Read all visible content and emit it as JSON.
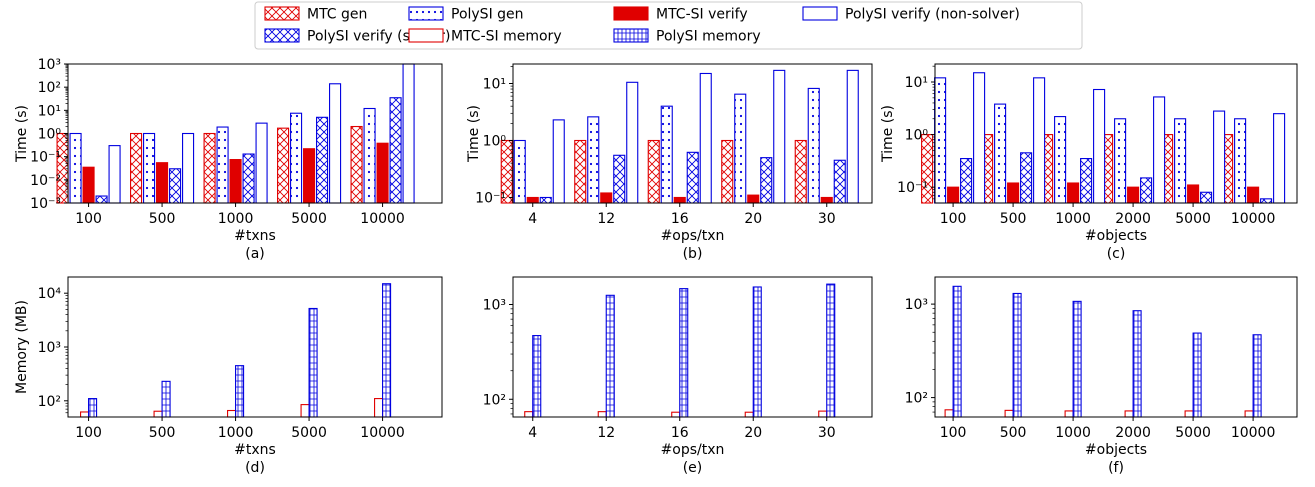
{
  "legend": {
    "items": [
      {
        "label": "MTC gen",
        "color": "#e00000",
        "style": "crosshatch"
      },
      {
        "label": "PolySI gen",
        "color": "#0000e0",
        "style": "dots"
      },
      {
        "label": "MTC-SI verify",
        "color": "#e00000",
        "style": "solid"
      },
      {
        "label": "PolySI verify (non-solver)",
        "color": "#0000e0",
        "style": "plain"
      },
      {
        "label": "PolySI verify (solver)",
        "color": "#0000e0",
        "style": "crosshatch"
      },
      {
        "label": "MTC-SI memory",
        "color": "#e00000",
        "style": "plain"
      },
      {
        "label": "PolySI memory",
        "color": "#0000e0",
        "style": "grid"
      }
    ]
  },
  "chart_data": [
    {
      "type": "bar",
      "panel": "(a)",
      "xlabel": "#txns",
      "ylabel": "Time (s)",
      "yscale": "log",
      "ylim": [
        0.001,
        1000
      ],
      "categories": [
        "100",
        "500",
        "1000",
        "5000",
        "10000"
      ],
      "series": [
        {
          "name": "MTC gen",
          "values": [
            1.0,
            1.0,
            1.0,
            1.7,
            2.0
          ]
        },
        {
          "name": "PolySI gen",
          "values": [
            1.0,
            1.0,
            1.9,
            7.5,
            12
          ]
        },
        {
          "name": "MTC-SI verify",
          "values": [
            0.035,
            0.055,
            0.075,
            0.22,
            0.38
          ]
        },
        {
          "name": "PolySI verify (solver)",
          "values": [
            0.002,
            0.03,
            0.13,
            5.0,
            35
          ]
        },
        {
          "name": "PolySI verify (non-solver)",
          "values": [
            0.3,
            1.0,
            2.8,
            140,
            1100
          ]
        }
      ]
    },
    {
      "type": "bar",
      "panel": "(b)",
      "xlabel": "#ops/txn",
      "ylabel": "Time (s)",
      "yscale": "log",
      "ylim": [
        0.08,
        22
      ],
      "categories": [
        "4",
        "12",
        "16",
        "20",
        "30"
      ],
      "series": [
        {
          "name": "MTC gen",
          "values": [
            1.0,
            1.0,
            1.0,
            1.0,
            1.0
          ]
        },
        {
          "name": "PolySI gen",
          "values": [
            1.0,
            2.6,
            4.0,
            6.5,
            8.2
          ]
        },
        {
          "name": "MTC-SI verify",
          "values": [
            0.1,
            0.12,
            0.1,
            0.11,
            0.1
          ]
        },
        {
          "name": "PolySI verify (solver)",
          "values": [
            0.1,
            0.55,
            0.62,
            0.5,
            0.45
          ]
        },
        {
          "name": "PolySI verify (non-solver)",
          "values": [
            2.3,
            10.5,
            15,
            17,
            17
          ]
        }
      ]
    },
    {
      "type": "bar",
      "panel": "(c)",
      "xlabel": "#objects",
      "ylabel": "Time (s)",
      "yscale": "log",
      "ylim": [
        0.05,
        22
      ],
      "categories": [
        "100",
        "500",
        "1000",
        "2000",
        "5000",
        "10000"
      ],
      "series": [
        {
          "name": "MTC gen",
          "values": [
            1.0,
            1.0,
            1.0,
            1.0,
            1.0,
            1.0
          ]
        },
        {
          "name": "PolySI gen",
          "values": [
            12,
            3.8,
            2.2,
            2.0,
            2.0,
            2.0
          ]
        },
        {
          "name": "MTC-SI verify",
          "values": [
            0.1,
            0.12,
            0.12,
            0.1,
            0.11,
            0.1
          ]
        },
        {
          "name": "PolySI verify (solver)",
          "values": [
            0.35,
            0.45,
            0.35,
            0.15,
            0.08,
            0.06
          ]
        },
        {
          "name": "PolySI verify (non-solver)",
          "values": [
            15,
            12,
            7.2,
            5.2,
            2.8,
            2.5
          ]
        }
      ]
    },
    {
      "type": "bar",
      "panel": "(d)",
      "xlabel": "#txns",
      "ylabel": "Memory (MB)",
      "yscale": "log",
      "ylim": [
        50,
        20000
      ],
      "categories": [
        "100",
        "500",
        "1000",
        "5000",
        "10000"
      ],
      "series": [
        {
          "name": "MTC-SI memory",
          "values": [
            62,
            64,
            66,
            85,
            110
          ]
        },
        {
          "name": "PolySI memory",
          "values": [
            110,
            230,
            450,
            5200,
            15000
          ]
        }
      ]
    },
    {
      "type": "bar",
      "panel": "(e)",
      "xlabel": "#ops/txn",
      "ylabel": "",
      "yscale": "log",
      "ylim": [
        65,
        1950
      ],
      "categories": [
        "4",
        "12",
        "16",
        "20",
        "30"
      ],
      "series": [
        {
          "name": "MTC-SI memory",
          "values": [
            74,
            74,
            73,
            73,
            75
          ]
        },
        {
          "name": "PolySI memory",
          "values": [
            470,
            1250,
            1470,
            1530,
            1640
          ]
        }
      ]
    },
    {
      "type": "bar",
      "panel": "(f)",
      "xlabel": "#objects",
      "ylabel": "",
      "yscale": "log",
      "ylim": [
        62,
        1950
      ],
      "categories": [
        "100",
        "500",
        "1000",
        "2000",
        "5000",
        "10000"
      ],
      "series": [
        {
          "name": "MTC-SI memory",
          "values": [
            74,
            73,
            72,
            72,
            72,
            72
          ]
        },
        {
          "name": "PolySI memory",
          "values": [
            1550,
            1300,
            1070,
            850,
            490,
            470
          ]
        }
      ]
    }
  ]
}
